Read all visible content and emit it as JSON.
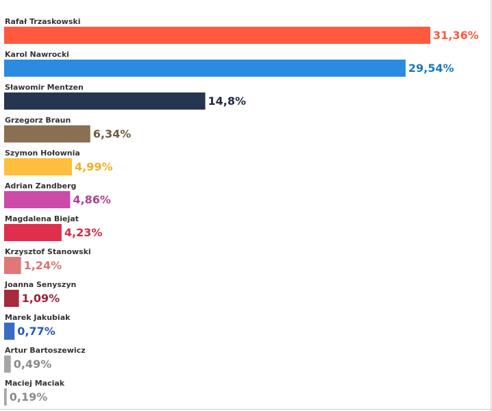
{
  "chart_data": {
    "type": "bar",
    "orientation": "horizontal",
    "title": "",
    "xlabel": "",
    "ylabel": "",
    "grid": false,
    "legend": "none",
    "xlim": [
      0,
      31.36
    ],
    "categories": [
      "Rafał Trzaskowski",
      "Karol Nawrocki",
      "Sławomir Mentzen",
      "Grzegorz Braun",
      "Szymon Hołownia",
      "Adrian Zandberg",
      "Magdalena Biejat",
      "Krzysztof Stanowski",
      "Joanna Senyszyn",
      "Marek Jakubiak",
      "Artur Bartoszewicz",
      "Maciej Maciak"
    ],
    "values": [
      31.36,
      29.54,
      14.8,
      6.34,
      4.99,
      4.86,
      4.23,
      1.24,
      1.09,
      0.77,
      0.49,
      0.19
    ],
    "value_labels": [
      "31,36%",
      "29,54%",
      "14,8%",
      "6,34%",
      "4,99%",
      "4,86%",
      "4,23%",
      "1,24%",
      "1,09%",
      "0,77%",
      "0,49%",
      "0,19%"
    ],
    "bar_colors": [
      "#ff5a3d",
      "#2a8be0",
      "#263550",
      "#8a6f52",
      "#ffbf3c",
      "#cc4aa8",
      "#e02f4d",
      "#e07878",
      "#a82a3c",
      "#3a6cc4",
      "#a6a6a6",
      "#a6a6a6"
    ],
    "label_colors": [
      "#ff5a3d",
      "#1a78c2",
      "#1e2a44",
      "#6e5a44",
      "#f0b020",
      "#b0408f",
      "#d42a45",
      "#e07070",
      "#9c2236",
      "#2a5aa8",
      "#8a8a8a",
      "#8a8a8a"
    ]
  }
}
